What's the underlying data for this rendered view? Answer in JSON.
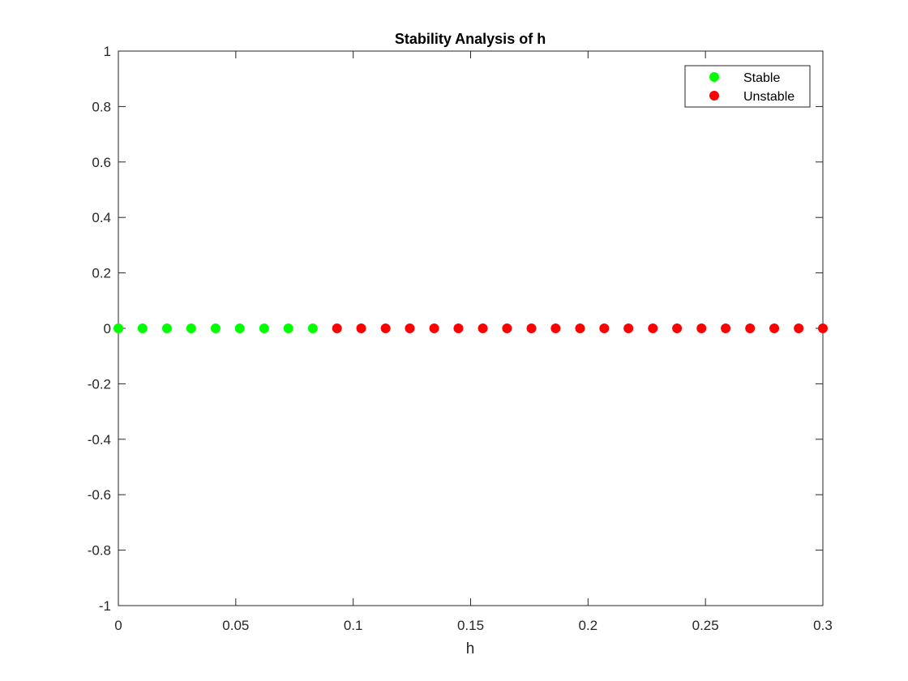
{
  "chart_data": {
    "type": "scatter",
    "title": "Stability Analysis of h",
    "xlabel": "h",
    "ylabel": "",
    "xlim": [
      0,
      0.3
    ],
    "ylim": [
      -1,
      1
    ],
    "xticks": [
      "0",
      "0.05",
      "0.1",
      "0.15",
      "0.2",
      "0.25",
      "0.3"
    ],
    "yticks": [
      "-1",
      "-0.8",
      "-0.6",
      "-0.4",
      "-0.2",
      "0",
      "0.2",
      "0.4",
      "0.6",
      "0.8",
      "1"
    ],
    "grid": false,
    "legend_position": "top-right",
    "series": [
      {
        "name": "Stable",
        "color": "#00ff00",
        "x": [
          0,
          0.0103,
          0.0207,
          0.031,
          0.0414,
          0.0517,
          0.0621,
          0.0724,
          0.0828
        ],
        "y": [
          0,
          0,
          0,
          0,
          0,
          0,
          0,
          0,
          0
        ]
      },
      {
        "name": "Unstable",
        "color": "#ff0000",
        "x": [
          0.0931,
          0.1034,
          0.1138,
          0.1241,
          0.1345,
          0.1448,
          0.1552,
          0.1655,
          0.1759,
          0.1862,
          0.1966,
          0.2069,
          0.2172,
          0.2276,
          0.2379,
          0.2483,
          0.2586,
          0.269,
          0.2793,
          0.2897,
          0.3
        ],
        "y": [
          0,
          0,
          0,
          0,
          0,
          0,
          0,
          0,
          0,
          0,
          0,
          0,
          0,
          0,
          0,
          0,
          0,
          0,
          0,
          0,
          0
        ]
      }
    ]
  }
}
